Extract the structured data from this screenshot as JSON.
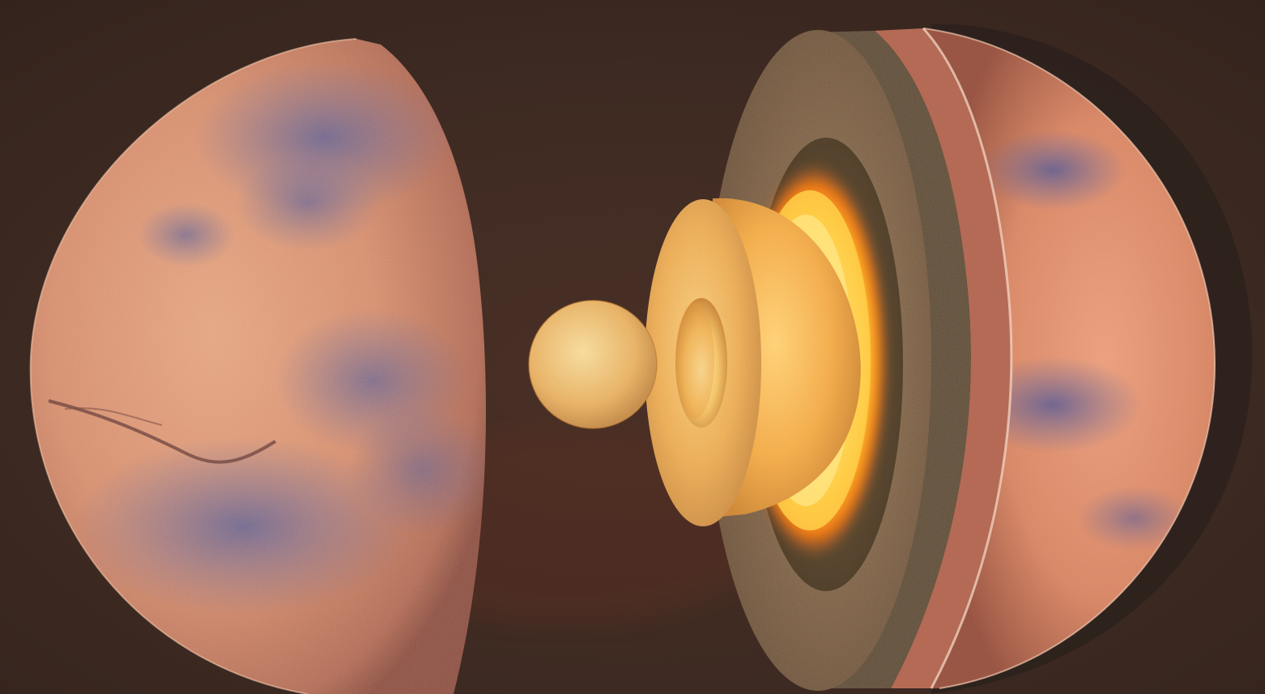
{
  "scene": {
    "background_color": "#3d2a22",
    "subject": "mars-interior-cutaway",
    "colors": {
      "surface_light": "#e7a07a",
      "surface_mid": "#c9765a",
      "surface_dark_patches": "#6f6a9c",
      "crust_cut": "#8a6a4a",
      "mantle_cut": "#6e5a3e",
      "outer_core_glow": "#ffb020",
      "inner_core": "#f0b35a"
    }
  }
}
